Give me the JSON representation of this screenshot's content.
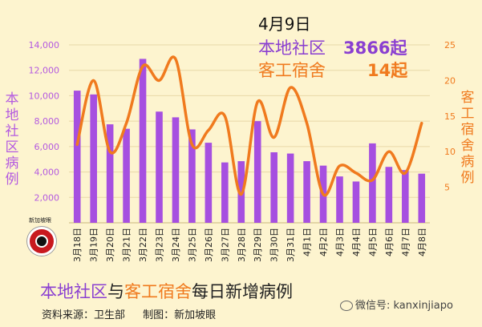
{
  "header": {
    "date": "4月9日",
    "local_label": "本地社区",
    "local_value": "3866起",
    "dorm_label": "客工宿舍",
    "dorm_value": "14起"
  },
  "axis_labels": {
    "left": "本地社区病例",
    "right": "客工宿舍病例"
  },
  "footer": {
    "title_part1": "本地社区",
    "title_part2": "与",
    "title_part3": "客工宿舍",
    "title_part4": "每日新增病例",
    "source": "资料来源：卫生部",
    "made_by": "制图：新加坡眼",
    "logo_text": "新加坡眼",
    "watermark": "微信号: kanxinjiapo"
  },
  "colors": {
    "bar": "#a64fe0",
    "line": "#f07a1e",
    "left_axis": "#b45ae0",
    "right_axis": "#f07a1e",
    "gridline": "#e8d8a8"
  },
  "chart_data": {
    "type": "bar",
    "categories": [
      "3月18日",
      "3月19日",
      "3月20日",
      "3月21日",
      "3月22日",
      "3月23日",
      "3月24日",
      "3月25日",
      "3月26日",
      "3月27日",
      "3月28日",
      "3月29日",
      "3月30日",
      "3月31日",
      "4月1日",
      "4月2日",
      "4月3日",
      "4月4日",
      "4月5日",
      "4月6日",
      "4月7日",
      "4月8日"
    ],
    "series": [
      {
        "name": "本地社区",
        "type": "bar",
        "axis": "left",
        "values": [
          10400,
          10100,
          7750,
          7400,
          12900,
          8750,
          8300,
          7350,
          6300,
          4750,
          4850,
          8000,
          5550,
          5450,
          4850,
          4500,
          3650,
          3250,
          6250,
          4400,
          4150,
          3866
        ]
      },
      {
        "name": "客工宿舍",
        "type": "line",
        "axis": "right",
        "values": [
          11,
          20,
          10,
          14,
          22,
          20,
          23,
          11,
          13,
          15,
          4,
          17,
          12,
          19,
          14,
          4,
          8,
          7,
          6,
          10,
          7,
          14
        ]
      }
    ],
    "yaxis_left": {
      "min": 0,
      "max": 14000,
      "ticks": [
        2000,
        4000,
        6000,
        8000,
        10000,
        12000,
        14000
      ]
    },
    "yaxis_right": {
      "min": 0,
      "max": 25,
      "ticks": [
        5,
        10,
        15,
        20,
        25
      ]
    },
    "grid": true
  }
}
